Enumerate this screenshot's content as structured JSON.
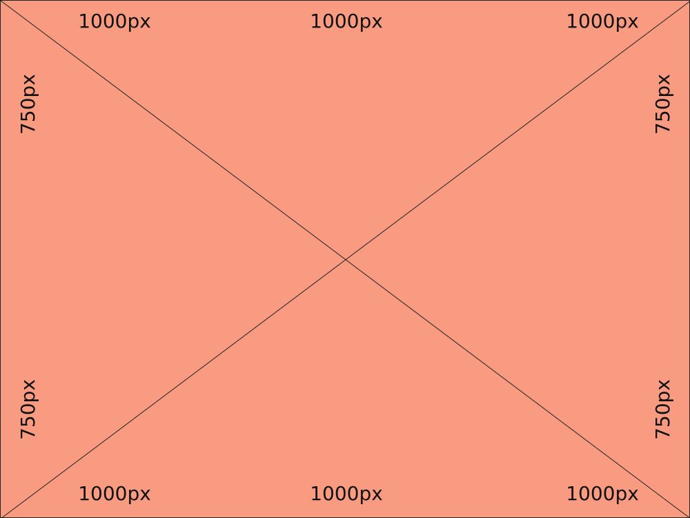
{
  "background_color": "#f89b80",
  "line_color": "#222222",
  "labels": {
    "top": [
      "1000px",
      "1000px",
      "1000px"
    ],
    "bottom": [
      "1000px",
      "1000px",
      "1000px"
    ],
    "left": [
      "750px",
      "750px"
    ],
    "right": [
      "750px",
      "750px"
    ]
  }
}
